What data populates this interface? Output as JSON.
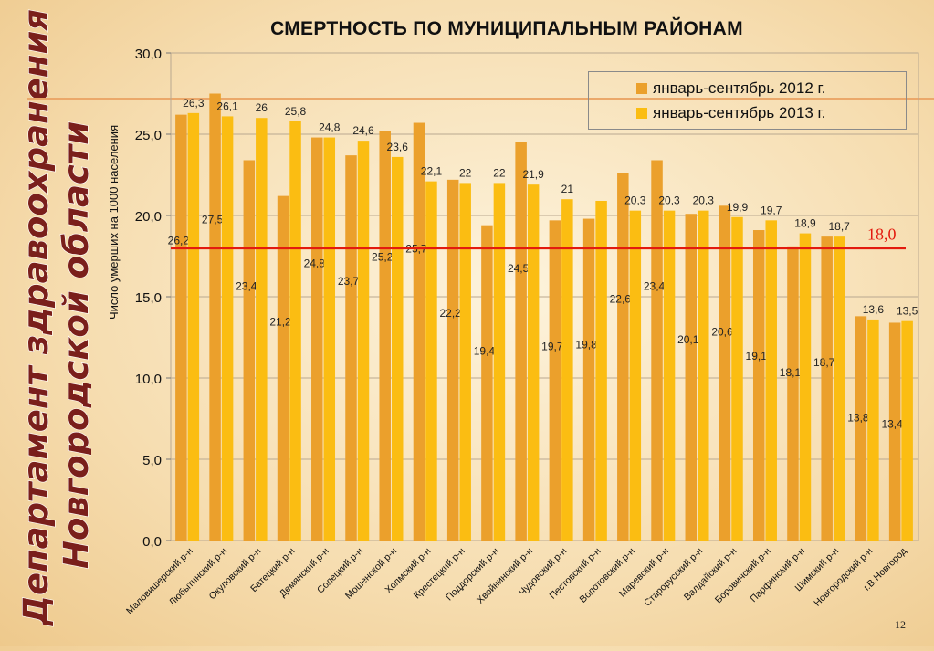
{
  "side_title": {
    "line1": "Департамент здравоохранения",
    "line2": "Новгородской области"
  },
  "page_number": "12",
  "chart_data": {
    "type": "bar",
    "title": "СМЕРТНОСТЬ ПО МУНИЦИПАЛЬНЫМ РАЙОНАМ",
    "ylabel": "Число умерших на 1000 населения",
    "xlabel": "",
    "ylim": [
      0,
      30
    ],
    "yticks": [
      "0,0",
      "5,0",
      "10,0",
      "15,0",
      "20,0",
      "25,0",
      "30,0"
    ],
    "yticks_values": [
      0,
      5,
      10,
      15,
      20,
      25,
      30
    ],
    "grid": true,
    "legend_position": "top-right",
    "categories": [
      "Маловишерский р-н",
      "Любытинский р-н",
      "Окуловский р-н",
      "Батецкий р-н",
      "Демянский р-н",
      "Солецкий р-н",
      "Мошенской р-н",
      "Холмский р-н",
      "Крестецкий р-н",
      "Поддорский р-н",
      "Хвойнинский р-н",
      "Чудовский р-н",
      "Пестовский р-н",
      "Волотовский р-н",
      "Маревский р-н",
      "Старорусский р-н",
      "Валдайский р-н",
      "Боровичский р-н",
      "Парфинский р-н",
      "Шимский р-н",
      "Новгородский р-н",
      "г.В.Новгород"
    ],
    "series": [
      {
        "name": "январь-сентябрь 2012 г.",
        "color": "#eba02c",
        "values": [
          26.2,
          27.5,
          23.4,
          21.2,
          24.8,
          23.7,
          25.2,
          25.7,
          22.2,
          19.4,
          24.5,
          19.7,
          19.8,
          22.6,
          23.4,
          20.1,
          20.6,
          19.1,
          18.1,
          18.7,
          13.8,
          13.4
        ],
        "labels": [
          "26,2",
          "27,5",
          "23,4",
          "21,2",
          "24,8",
          "23,7",
          "25,2",
          "25,7",
          "22,2",
          "19,4",
          "24,5",
          "19,7",
          "19,8",
          "22,6",
          "23,4",
          "20,1",
          "20,6",
          "19,1",
          "18,1",
          "18,7",
          "13,8",
          "13,4"
        ]
      },
      {
        "name": "январь-сентябрь 2013 г.",
        "color": "#fbbd12",
        "values": [
          26.3,
          26.1,
          26,
          25.8,
          24.8,
          24.6,
          23.6,
          22.1,
          22,
          22,
          21.9,
          21,
          20.9,
          20.3,
          20.3,
          20.3,
          19.9,
          19.7,
          18.9,
          18.7,
          13.6,
          13.5
        ],
        "labels": [
          "26,3",
          "26,1",
          "26",
          "25,8",
          "24,8",
          "24,6",
          "23,6",
          "22,1",
          "22",
          "22",
          "21,9",
          "21",
          "",
          "20,3",
          "20,3",
          "20,3",
          "19,9",
          "19,7",
          "18,9",
          "18,7",
          "13,6",
          "13,5"
        ]
      }
    ],
    "reference_line": {
      "value": 18.0,
      "label": "18,0",
      "color": "#e31a0e"
    },
    "colors": {
      "grid": "#b9a890",
      "axis_text": "#111111"
    }
  }
}
